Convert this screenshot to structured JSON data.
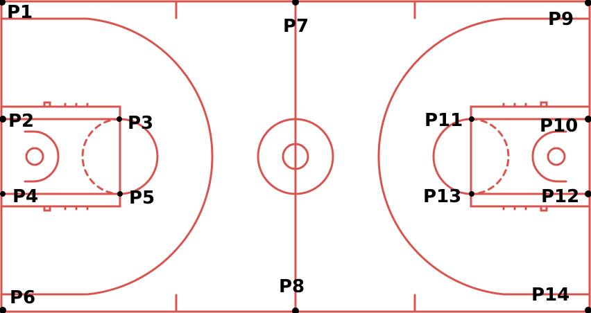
{
  "court": {
    "line_color": "#d9534f",
    "background": "#ffffff",
    "marker_color": "#000000"
  },
  "points": [
    {
      "id": "p1",
      "label": "P1"
    },
    {
      "id": "p2",
      "label": "P2"
    },
    {
      "id": "p3",
      "label": "P3"
    },
    {
      "id": "p4",
      "label": "P4"
    },
    {
      "id": "p5",
      "label": "P5"
    },
    {
      "id": "p6",
      "label": "P6"
    },
    {
      "id": "p7",
      "label": "P7"
    },
    {
      "id": "p8",
      "label": "P8"
    },
    {
      "id": "p9",
      "label": "P9"
    },
    {
      "id": "p10",
      "label": "P10"
    },
    {
      "id": "p11",
      "label": "P11"
    },
    {
      "id": "p12",
      "label": "P12"
    },
    {
      "id": "p13",
      "label": "P13"
    },
    {
      "id": "p14",
      "label": "P14"
    }
  ]
}
